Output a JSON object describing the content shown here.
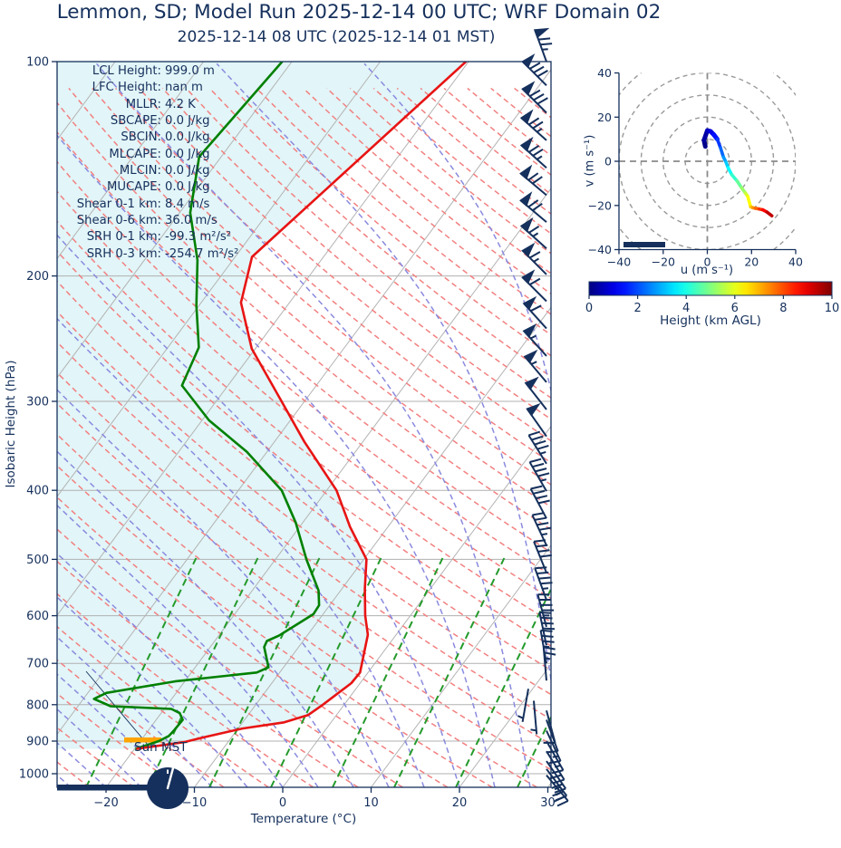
{
  "header": {
    "title": "Lemmon, SD; Model Run 2025-12-14 00 UTC; WRF Domain 02",
    "subtitle": "2025-12-14 08 UTC  (2025-12-14 01 MST)"
  },
  "stats": [
    {
      "label": "LCL Height:",
      "value": "999.0 m"
    },
    {
      "label": "LFC Height:",
      "value": "nan m"
    },
    {
      "label": "MLLR:",
      "value": "4.2 K"
    },
    {
      "label": "SBCAPE:",
      "value": "0.0 J/kg"
    },
    {
      "label": "SBCIN:",
      "value": "0.0 J/kg"
    },
    {
      "label": "MLCAPE:",
      "value": "0.0 J/kg"
    },
    {
      "label": "MLCIN:",
      "value": "0.0 J/kg"
    },
    {
      "label": "MUCAPE:",
      "value": "0.0 J/kg"
    },
    {
      "label": "Shear 0-1 km:",
      "value": "8.4 m/s"
    },
    {
      "label": "Shear 0-6 km:",
      "value": "36.0 m/s"
    },
    {
      "label": "SRH 0-1 km:",
      "value": "-99.3 m²/s²"
    },
    {
      "label": "SRH 0-3 km:",
      "value": "-254.7 m²/s²"
    }
  ],
  "skewt": {
    "ylabel": "Isobaric Height (hPa)",
    "xlabel": "Temperature (°C)",
    "pressure_tick_labels": [
      "100",
      "200",
      "300",
      "400",
      "500",
      "600",
      "700",
      "800",
      "900",
      "1000"
    ],
    "temp_tick_labels": [
      "−20",
      "−10",
      "0",
      "10",
      "20",
      "30"
    ],
    "surface_annotation": "Sun MST"
  },
  "hodograph": {
    "xlabel": "u (m s⁻¹)",
    "ylabel": "v (m s⁻¹)",
    "xtick_labels": [
      "−40",
      "−20",
      "0",
      "20",
      "40"
    ],
    "ytick_labels": [
      "−40",
      "−20",
      "0",
      "20",
      "40"
    ]
  },
  "colorbar": {
    "label": "Height (km AGL)",
    "tick_labels": [
      "0",
      "2",
      "4",
      "6",
      "8",
      "10"
    ]
  },
  "colors": {
    "text": "#15305c",
    "temperature_line": "#e81414",
    "dewpoint_line": "#008000",
    "dry_adiabat": "#f28080",
    "moist_adiabat": "#8a8ade",
    "mixing_ratio": "#249a2b",
    "isotherm": "#b3b3b3",
    "gridline": "#b0b0b0",
    "shaded_fill": "#e2f5f8",
    "barb": "#15305c",
    "surface_marker": "#ffa500",
    "night_bar": "#15305c"
  },
  "chart_data": {
    "type": "skewt-logp-sounding",
    "pressure_axis_range_hPa": [
      100,
      1045
    ],
    "temp_axis_range_C": [
      -25.5,
      30.4
    ],
    "pressure_ticks_hPa": [
      100,
      200,
      300,
      400,
      500,
      600,
      700,
      800,
      900,
      1000
    ],
    "temp_ticks_C": [
      -20,
      -10,
      0,
      10,
      20,
      30
    ],
    "temperature_profile": {
      "pressure_hPa": [
        923,
        903,
        890,
        864,
        847,
        827,
        800,
        746,
        721,
        638,
        600,
        550,
        500,
        450,
        400,
        342,
        300,
        253,
        218,
        188,
        150,
        100
      ],
      "temp_C": [
        -19.8,
        -15.0,
        -13.3,
        -9.5,
        -5.3,
        -3.2,
        -2.4,
        -1.0,
        -0.9,
        -3.2,
        -5.1,
        -7.4,
        -9.7,
        -14.3,
        -18.9,
        -26.6,
        -32.6,
        -40.4,
        -45.5,
        -48.1,
        -45.3,
        -40.3
      ]
    },
    "dewpoint_profile": {
      "pressure_hPa": [
        923,
        900,
        885,
        871,
        840,
        822,
        811,
        804,
        785,
        770,
        742,
        721,
        709,
        664,
        651,
        640,
        615,
        597,
        580,
        553,
        500,
        444,
        400,
        353,
        319,
        285,
        252,
        220,
        190,
        163,
        136,
        100
      ],
      "dewpoint_C": [
        -19.9,
        -17.9,
        -17.2,
        -17.1,
        -17.0,
        -17.9,
        -19.2,
        -26.3,
        -28.8,
        -27.9,
        -21.1,
        -12.6,
        -11.7,
        -13.9,
        -14.1,
        -13.2,
        -12.0,
        -11.1,
        -11.2,
        -12.5,
        -16.5,
        -20.8,
        -25.1,
        -32.3,
        -39.2,
        -45.2,
        -46.5,
        -50.3,
        -54.0,
        -58.8,
        -62.5,
        -61.1
      ]
    },
    "wind_barbs_p_dir_spd": [
      [
        100,
        340,
        75
      ],
      [
        108,
        315,
        80
      ],
      [
        118,
        315,
        80
      ],
      [
        129,
        312,
        75
      ],
      [
        141,
        312,
        75
      ],
      [
        154,
        310,
        70
      ],
      [
        168,
        310,
        70
      ],
      [
        183,
        312,
        65
      ],
      [
        199,
        315,
        65
      ],
      [
        217,
        315,
        60
      ],
      [
        237,
        318,
        60
      ],
      [
        259,
        318,
        55
      ],
      [
        282,
        320,
        55
      ],
      [
        308,
        322,
        50
      ],
      [
        336,
        325,
        50
      ],
      [
        367,
        328,
        45
      ],
      [
        401,
        330,
        45
      ],
      [
        438,
        332,
        40
      ],
      [
        478,
        335,
        45
      ],
      [
        522,
        338,
        40
      ],
      [
        570,
        340,
        45
      ],
      [
        622,
        345,
        45
      ],
      [
        660,
        348,
        40
      ],
      [
        700,
        350,
        35
      ],
      [
        740,
        355,
        25
      ],
      [
        760,
        190,
        5,
        -20
      ],
      [
        790,
        175,
        5,
        -14
      ],
      [
        815,
        165,
        10
      ],
      [
        840,
        160,
        10
      ],
      [
        870,
        155,
        15
      ],
      [
        900,
        150,
        15
      ],
      [
        930,
        148,
        20
      ],
      [
        960,
        145,
        20
      ],
      [
        985,
        143,
        25
      ],
      [
        1005,
        140,
        25
      ]
    ],
    "hodograph": {
      "type": "line-colored-by-height",
      "u_range_ms": [
        -40,
        40
      ],
      "v_range_ms": [
        -40,
        40
      ],
      "axis_ticks_ms": [
        -40,
        -20,
        0,
        20,
        40
      ],
      "range_rings_ms": [
        10,
        20,
        30,
        40,
        50
      ],
      "height_km": [
        0,
        0.2,
        0.5,
        0.8,
        1.2,
        1.6,
        2.0,
        2.5,
        3.0,
        3.5,
        4.0,
        4.5,
        5.0,
        5.5,
        6.0,
        6.5,
        7.0,
        7.5,
        8.0,
        8.5,
        9.0,
        9.7
      ],
      "u_ms": [
        -0.9,
        -1.5,
        0,
        1.5,
        3,
        4.5,
        6,
        7.3,
        8.5,
        9.4,
        11,
        13.5,
        15.5,
        17.3,
        18.3,
        19.6,
        20.5,
        21.7,
        23.5,
        25.1,
        27,
        29.2
      ],
      "v_ms": [
        6.7,
        9.5,
        13.9,
        13.5,
        12,
        10,
        6,
        1.9,
        -0.5,
        -2.9,
        -6,
        -9,
        -12,
        -14.5,
        -15.9,
        -20.6,
        -21,
        -21.3,
        -21.6,
        -22,
        -23,
        -24.7
      ]
    },
    "colorbar": {
      "range_km": [
        0,
        10
      ],
      "ticks_km": [
        0,
        2,
        4,
        6,
        8,
        10
      ],
      "colormap": "jet"
    }
  }
}
